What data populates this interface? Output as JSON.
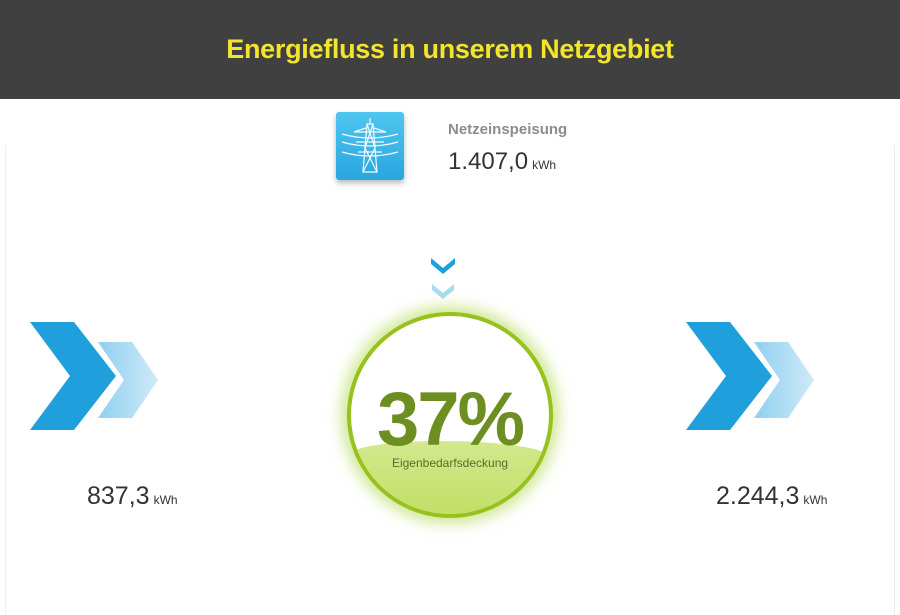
{
  "header": {
    "title": "Energiefluss in unserem Netzgebiet"
  },
  "grid": {
    "icon": "power-pylon-icon",
    "label": "Netzeinspeisung",
    "value": "1.407,0",
    "unit": "kWh"
  },
  "flow_left": {
    "icon": "double-chevron-right-icon",
    "value": "837,3",
    "unit": "kWh"
  },
  "flow_right": {
    "icon": "double-chevron-right-icon",
    "value": "2.244,3",
    "unit": "kWh"
  },
  "coverage": {
    "percent_text": "37%",
    "fraction": 0.37,
    "caption": "Eigenbedarfsdeckung"
  },
  "colors": {
    "header_bg": "#404040",
    "title": "#f2e52a",
    "arrow_dark": "#1f9fdc",
    "arrow_light": "#8fd0f0",
    "ring": "#97c11e",
    "fill": "#c3df66",
    "percent": "#6d8f22"
  }
}
